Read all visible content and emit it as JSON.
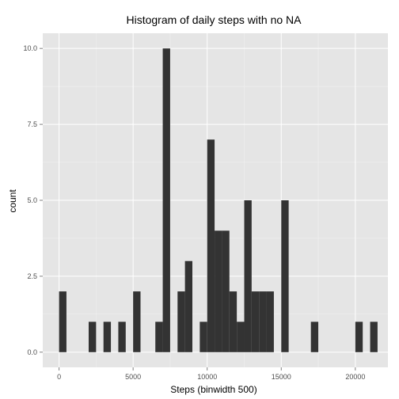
{
  "chart_data": {
    "type": "bar",
    "title": "Histogram of daily steps with no NA",
    "xlabel": "Steps (binwidth 500)",
    "ylabel": "count",
    "binwidth": 500,
    "xlim": [
      -1100,
      22200
    ],
    "ylim": [
      -0.5,
      10.5
    ],
    "x_ticks": [
      0,
      5000,
      10000,
      15000,
      20000
    ],
    "x_tick_labels": [
      "0",
      "5000",
      "10000",
      "15000",
      "20000"
    ],
    "y_ticks": [
      0,
      2.5,
      5,
      7.5,
      10
    ],
    "y_tick_labels": [
      "0.0",
      "2.5",
      "5.0",
      "7.5",
      "10.0"
    ],
    "grid": true,
    "bins": [
      {
        "x": 0,
        "count": 2
      },
      {
        "x": 2000,
        "count": 1
      },
      {
        "x": 3000,
        "count": 1
      },
      {
        "x": 4000,
        "count": 1
      },
      {
        "x": 5000,
        "count": 2
      },
      {
        "x": 6500,
        "count": 1
      },
      {
        "x": 7000,
        "count": 10
      },
      {
        "x": 8000,
        "count": 2
      },
      {
        "x": 8500,
        "count": 3
      },
      {
        "x": 9500,
        "count": 1
      },
      {
        "x": 10000,
        "count": 7
      },
      {
        "x": 10500,
        "count": 4
      },
      {
        "x": 11000,
        "count": 4
      },
      {
        "x": 11500,
        "count": 2
      },
      {
        "x": 12000,
        "count": 1
      },
      {
        "x": 12500,
        "count": 5
      },
      {
        "x": 13000,
        "count": 2
      },
      {
        "x": 13500,
        "count": 2
      },
      {
        "x": 14000,
        "count": 2
      },
      {
        "x": 15000,
        "count": 5
      },
      {
        "x": 17000,
        "count": 1
      },
      {
        "x": 20000,
        "count": 1
      },
      {
        "x": 21000,
        "count": 1
      }
    ],
    "colors": {
      "panel": "#e5e5e5",
      "grid_major": "#ffffff",
      "grid_minor": "#f2f2f2",
      "bar": "#333333",
      "tick": "#7f7f7f"
    }
  }
}
